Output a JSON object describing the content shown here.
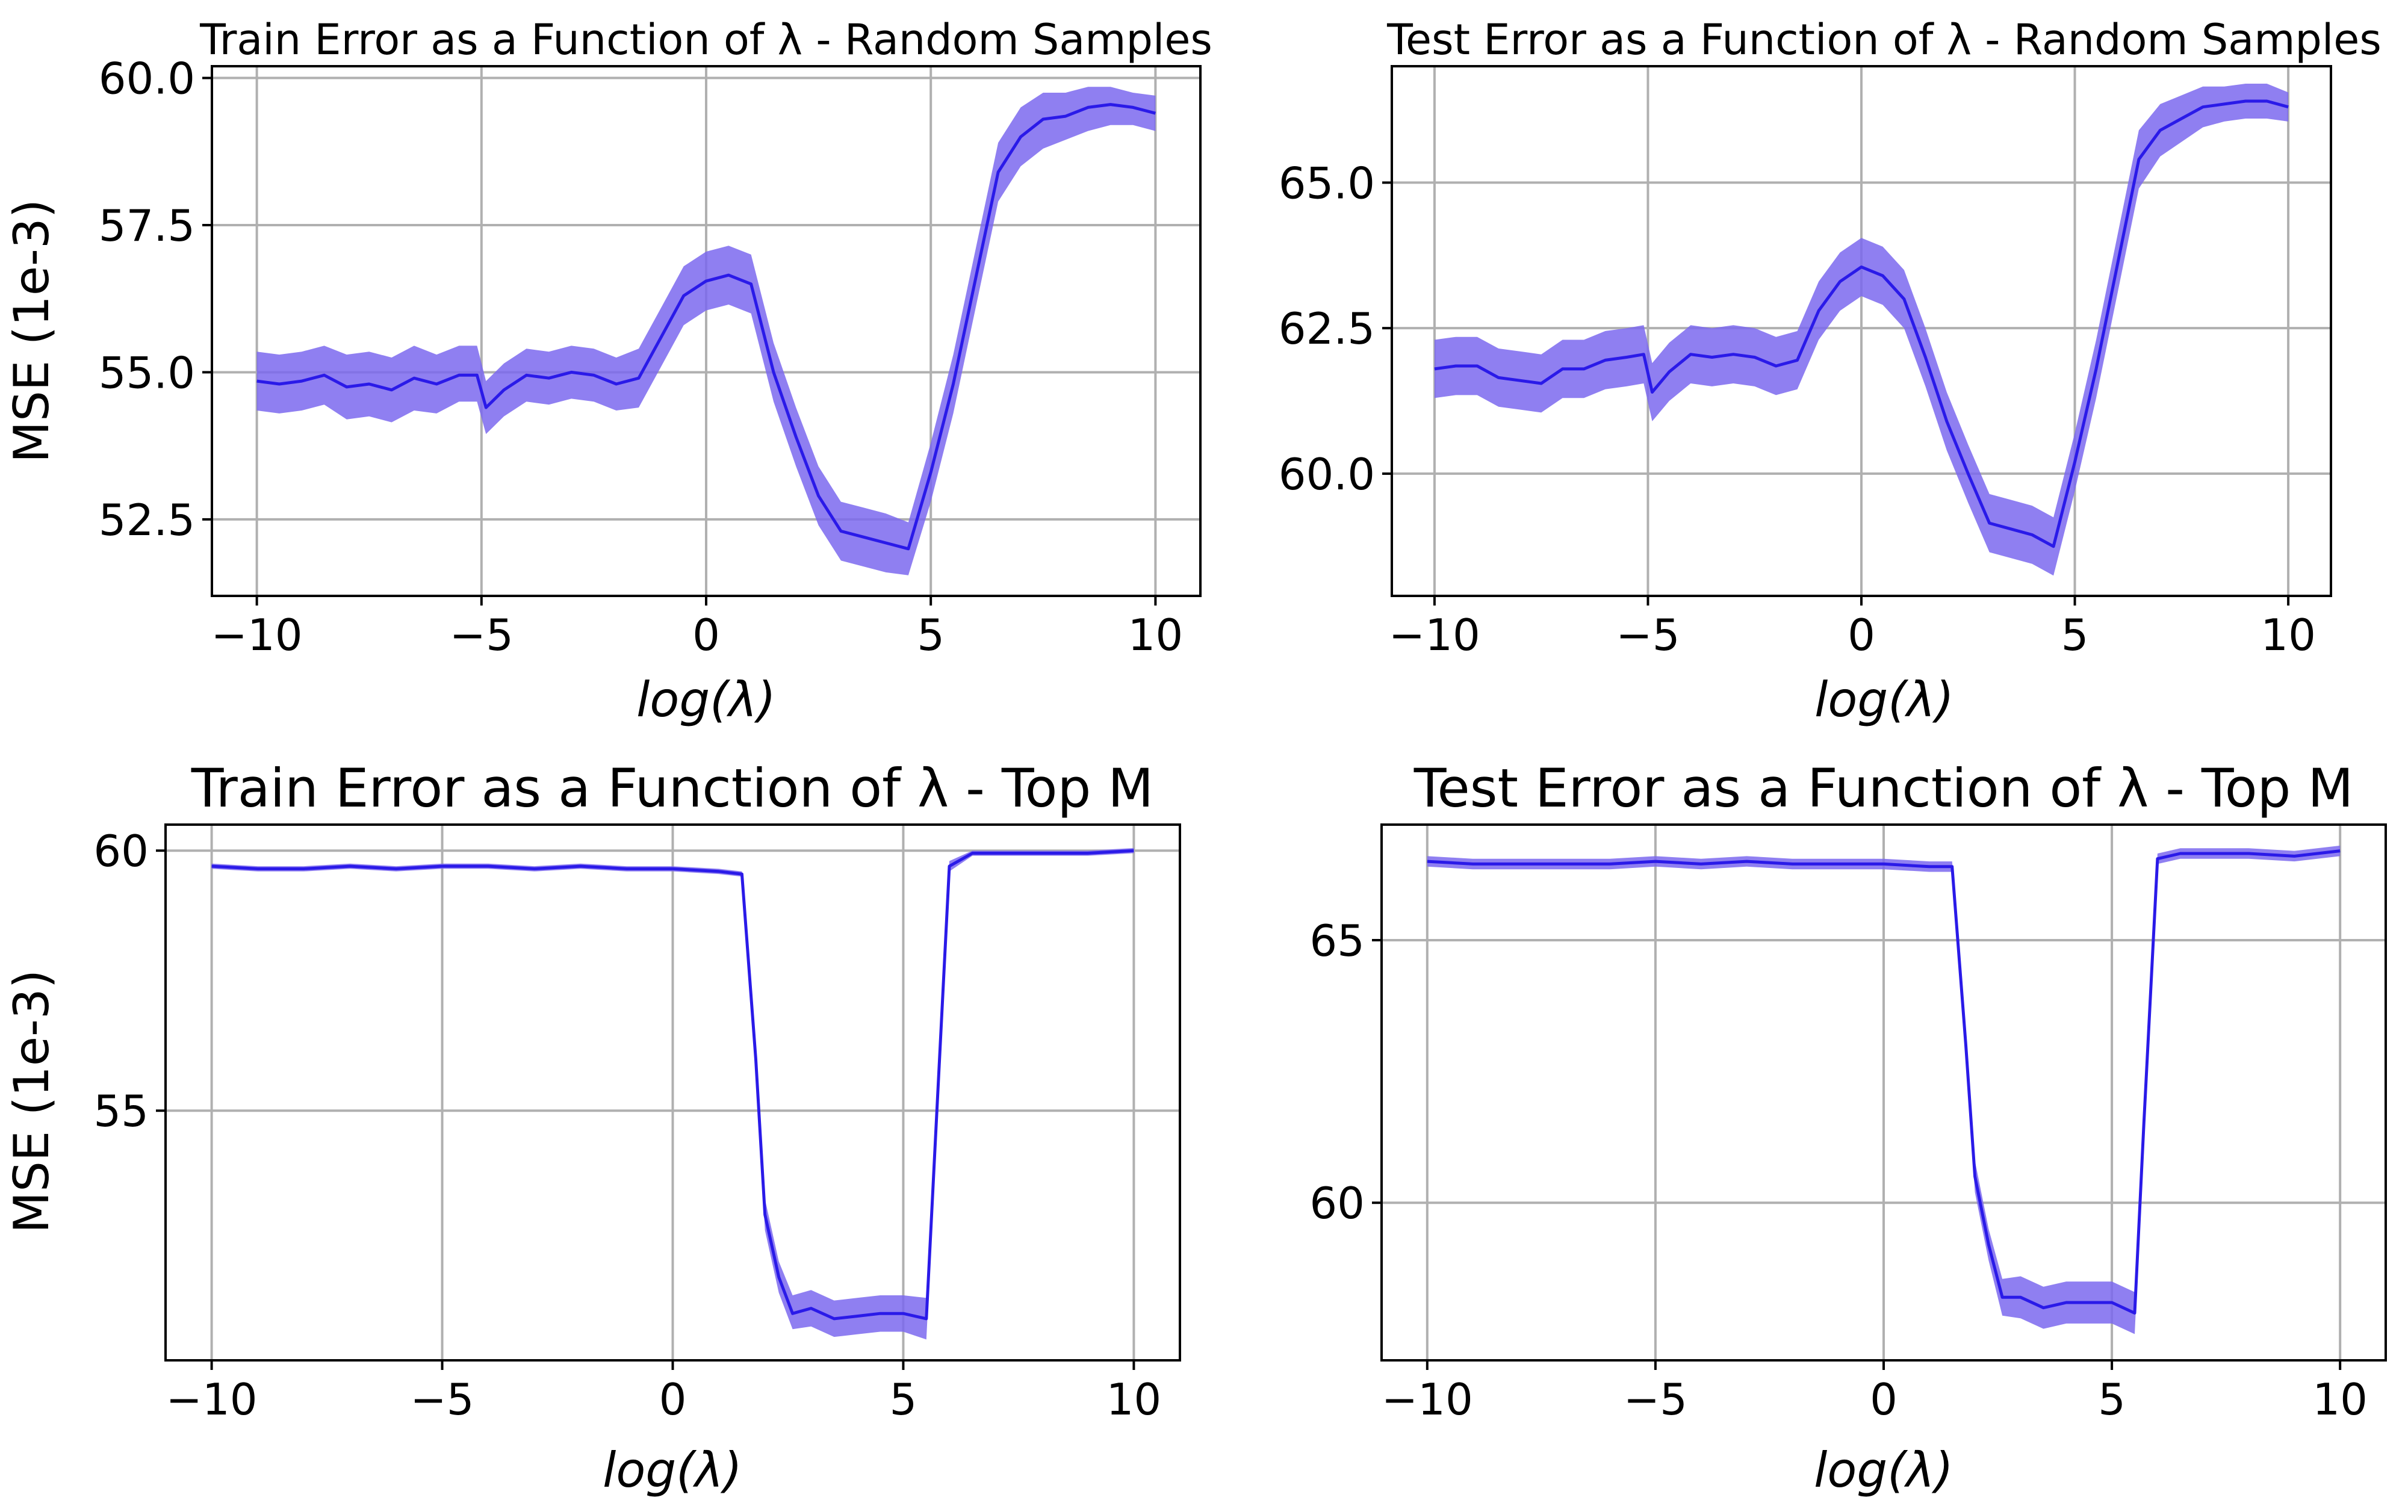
{
  "figure": {
    "colors": {
      "line": "#2a1ae8",
      "band": "#7b68ee",
      "grid": "#b0b0b0"
    }
  },
  "chart_data": [
    {
      "type": "line",
      "title": "Train Error as a Function of λ  - Random Samples",
      "xlabel": "log(λ)",
      "ylabel": "MSE (1e-3)",
      "xlim": [
        -11,
        11
      ],
      "ylim": [
        51.2,
        60.2
      ],
      "xticks": [
        -10,
        -5,
        0,
        5,
        10
      ],
      "xtick_labels": [
        "−10",
        "−5",
        "0",
        "5",
        "10"
      ],
      "yticks": [
        52.5,
        55.0,
        57.5,
        60.0
      ],
      "ytick_labels": [
        "52.5",
        "55.0",
        "57.5",
        "60.0"
      ],
      "grid": true,
      "x": [
        -10,
        -9.5,
        -9,
        -8.5,
        -8,
        -7.5,
        -7,
        -6.5,
        -6,
        -5.5,
        -5.1,
        -4.9,
        -4.5,
        -4,
        -3.5,
        -3,
        -2.5,
        -2,
        -1.5,
        -1,
        -0.5,
        0,
        0.5,
        1,
        1.5,
        2,
        2.5,
        3,
        3.5,
        4,
        4.5,
        5,
        5.5,
        6,
        6.5,
        7,
        7.5,
        8,
        8.5,
        9,
        9.5,
        10
      ],
      "series": [
        {
          "values": [
            54.85,
            54.8,
            54.85,
            54.95,
            54.75,
            54.8,
            54.7,
            54.9,
            54.8,
            54.95,
            54.95,
            54.4,
            54.7,
            54.95,
            54.9,
            55.0,
            54.95,
            54.8,
            54.9,
            55.6,
            56.3,
            56.55,
            56.65,
            56.5,
            55.0,
            53.9,
            52.9,
            52.3,
            52.2,
            52.1,
            52.0,
            53.3,
            54.8,
            56.6,
            58.4,
            59.0,
            59.3,
            59.35,
            59.5,
            59.55,
            59.5,
            59.4
          ],
          "lower": [
            54.35,
            54.3,
            54.35,
            54.45,
            54.2,
            54.25,
            54.15,
            54.35,
            54.3,
            54.5,
            54.5,
            53.95,
            54.25,
            54.5,
            54.45,
            54.55,
            54.5,
            54.35,
            54.4,
            55.1,
            55.8,
            56.05,
            56.15,
            56.0,
            54.5,
            53.4,
            52.4,
            51.8,
            51.7,
            51.6,
            51.55,
            52.8,
            54.3,
            56.1,
            57.9,
            58.5,
            58.8,
            58.95,
            59.1,
            59.2,
            59.2,
            59.1
          ],
          "upper": [
            55.35,
            55.3,
            55.35,
            55.45,
            55.3,
            55.35,
            55.25,
            55.45,
            55.3,
            55.45,
            55.45,
            54.85,
            55.15,
            55.4,
            55.35,
            55.45,
            55.4,
            55.25,
            55.4,
            56.1,
            56.8,
            57.05,
            57.15,
            57.0,
            55.5,
            54.4,
            53.4,
            52.8,
            52.7,
            52.6,
            52.45,
            53.8,
            55.3,
            57.1,
            58.9,
            59.5,
            59.75,
            59.75,
            59.85,
            59.85,
            59.75,
            59.7
          ]
        }
      ]
    },
    {
      "type": "line",
      "title": "Test Error as a Function of λ - Random Samples",
      "xlabel": "log(λ)",
      "ylabel": "",
      "xlim": [
        -11,
        11
      ],
      "ylim": [
        57.9,
        67.0
      ],
      "xticks": [
        -10,
        -5,
        0,
        5,
        10
      ],
      "xtick_labels": [
        "−10",
        "−5",
        "0",
        "5",
        "10"
      ],
      "yticks": [
        60.0,
        62.5,
        65.0
      ],
      "ytick_labels": [
        "60.0",
        "62.5",
        "65.0"
      ],
      "grid": true,
      "x": [
        -10,
        -9.5,
        -9,
        -8.5,
        -8,
        -7.5,
        -7,
        -6.5,
        -6,
        -5.5,
        -5.1,
        -4.9,
        -4.5,
        -4,
        -3.5,
        -3,
        -2.5,
        -2,
        -1.5,
        -1,
        -0.5,
        0,
        0.5,
        1,
        1.5,
        2,
        2.5,
        3,
        3.5,
        4,
        4.5,
        5,
        5.5,
        6,
        6.5,
        7,
        7.5,
        8,
        8.5,
        9,
        9.5,
        10
      ],
      "series": [
        {
          "values": [
            61.8,
            61.85,
            61.85,
            61.65,
            61.6,
            61.55,
            61.8,
            61.8,
            61.95,
            62.0,
            62.05,
            61.4,
            61.75,
            62.05,
            62.0,
            62.05,
            62.0,
            61.85,
            61.95,
            62.8,
            63.3,
            63.55,
            63.4,
            63.0,
            62.0,
            60.9,
            60.0,
            59.15,
            59.05,
            58.95,
            58.75,
            60.2,
            61.8,
            63.6,
            65.4,
            65.9,
            66.1,
            66.3,
            66.35,
            66.4,
            66.4,
            66.3
          ],
          "lower": [
            61.3,
            61.35,
            61.35,
            61.15,
            61.1,
            61.05,
            61.3,
            61.3,
            61.45,
            61.5,
            61.55,
            60.9,
            61.25,
            61.55,
            61.5,
            61.55,
            61.5,
            61.35,
            61.45,
            62.3,
            62.8,
            63.05,
            62.9,
            62.5,
            61.5,
            60.4,
            59.5,
            58.65,
            58.55,
            58.45,
            58.25,
            59.7,
            61.3,
            63.1,
            64.9,
            65.45,
            65.7,
            65.95,
            66.05,
            66.1,
            66.1,
            66.05
          ],
          "upper": [
            62.3,
            62.35,
            62.35,
            62.15,
            62.1,
            62.05,
            62.3,
            62.3,
            62.45,
            62.5,
            62.55,
            61.9,
            62.25,
            62.55,
            62.5,
            62.55,
            62.5,
            62.35,
            62.45,
            63.3,
            63.8,
            64.05,
            63.9,
            63.5,
            62.5,
            61.4,
            60.5,
            59.65,
            59.55,
            59.45,
            59.25,
            60.7,
            62.3,
            64.1,
            65.9,
            66.35,
            66.5,
            66.65,
            66.65,
            66.7,
            66.7,
            66.55
          ]
        }
      ]
    },
    {
      "type": "line",
      "title": "Train Error as a Function of λ - Top M",
      "xlabel": "log(λ)",
      "ylabel": "MSE (1e-3)",
      "xlim": [
        -11,
        11
      ],
      "ylim": [
        50.2,
        60.5
      ],
      "xticks": [
        -10,
        -5,
        0,
        5,
        10
      ],
      "xtick_labels": [
        "−10",
        "−5",
        "0",
        "5",
        "10"
      ],
      "yticks": [
        55,
        60
      ],
      "ytick_labels": [
        "55",
        "60"
      ],
      "grid": true,
      "x": [
        -10,
        -9,
        -8,
        -7,
        -6,
        -5,
        -4,
        -3,
        -2,
        -1,
        0,
        1,
        1.5,
        1.8,
        2.0,
        2.3,
        2.6,
        3.0,
        3.5,
        4,
        4.5,
        5.0,
        5.5,
        5.7,
        6.0,
        6.5,
        7,
        8,
        9,
        10
      ],
      "series": [
        {
          "values": [
            59.7,
            59.65,
            59.65,
            59.7,
            59.65,
            59.7,
            59.7,
            59.65,
            59.7,
            59.65,
            59.65,
            59.6,
            59.55,
            56.0,
            53.0,
            51.8,
            51.1,
            51.2,
            51.0,
            51.05,
            51.1,
            51.1,
            51.0,
            54.5,
            59.7,
            59.95,
            59.95,
            59.95,
            59.95,
            60.0
          ],
          "lower": [
            59.65,
            59.6,
            59.6,
            59.65,
            59.6,
            59.65,
            59.65,
            59.6,
            59.65,
            59.6,
            59.6,
            59.55,
            59.5,
            55.7,
            52.7,
            51.5,
            50.8,
            50.85,
            50.65,
            50.7,
            50.75,
            50.75,
            50.6,
            54.2,
            59.6,
            59.9,
            59.9,
            59.9,
            59.9,
            59.95
          ],
          "upper": [
            59.75,
            59.7,
            59.7,
            59.75,
            59.7,
            59.75,
            59.75,
            59.7,
            59.75,
            59.7,
            59.7,
            59.65,
            59.6,
            56.3,
            53.3,
            52.1,
            51.45,
            51.55,
            51.35,
            51.4,
            51.45,
            51.45,
            51.4,
            54.8,
            59.8,
            60.0,
            60.0,
            60.0,
            60.0,
            60.05
          ]
        }
      ]
    },
    {
      "type": "line",
      "title": "Test Error as a Function of λ - Top M",
      "xlabel": "log(λ)",
      "ylabel": "",
      "xlim": [
        -11,
        11
      ],
      "ylim": [
        57.0,
        67.2
      ],
      "xticks": [
        -10,
        -5,
        0,
        5,
        10
      ],
      "xtick_labels": [
        "−10",
        "−5",
        "0",
        "5",
        "10"
      ],
      "yticks": [
        60,
        65
      ],
      "ytick_labels": [
        "60",
        "65"
      ],
      "grid": true,
      "x": [
        -10,
        -9,
        -8,
        -7,
        -6,
        -5,
        -4,
        -3,
        -2,
        -1,
        0,
        1,
        1.5,
        1.8,
        2.0,
        2.3,
        2.6,
        3.0,
        3.5,
        4,
        4.5,
        5.0,
        5.5,
        5.7,
        6.0,
        6.5,
        7,
        8,
        9,
        10
      ],
      "series": [
        {
          "values": [
            66.5,
            66.45,
            66.45,
            66.45,
            66.45,
            66.5,
            66.45,
            66.5,
            66.45,
            66.45,
            66.45,
            66.4,
            66.4,
            63.0,
            60.5,
            59.2,
            58.2,
            58.2,
            58.0,
            58.1,
            58.1,
            58.1,
            57.9,
            61.5,
            66.55,
            66.65,
            66.65,
            66.65,
            66.6,
            66.7
          ],
          "lower": [
            66.4,
            66.35,
            66.35,
            66.35,
            66.35,
            66.4,
            66.35,
            66.4,
            66.35,
            66.35,
            66.35,
            66.3,
            66.3,
            62.7,
            60.2,
            58.9,
            57.85,
            57.8,
            57.6,
            57.7,
            57.7,
            57.7,
            57.5,
            61.2,
            66.45,
            66.55,
            66.55,
            66.55,
            66.5,
            66.6
          ],
          "upper": [
            66.6,
            66.55,
            66.55,
            66.55,
            66.55,
            66.6,
            66.55,
            66.6,
            66.55,
            66.55,
            66.55,
            66.5,
            66.5,
            63.3,
            60.8,
            59.5,
            58.55,
            58.6,
            58.4,
            58.5,
            58.5,
            58.5,
            58.3,
            61.8,
            66.65,
            66.75,
            66.75,
            66.75,
            66.7,
            66.8
          ]
        }
      ]
    }
  ]
}
